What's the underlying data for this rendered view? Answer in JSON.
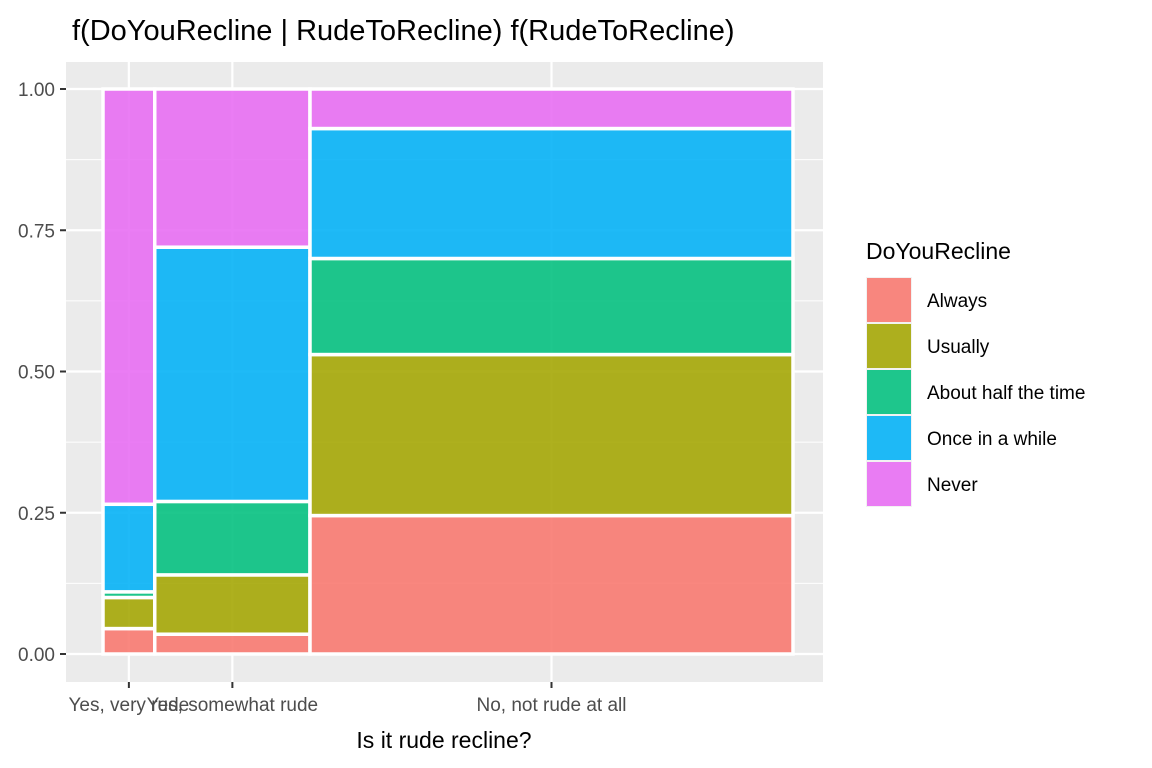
{
  "chart_data": {
    "type": "mosaic",
    "title": "f(DoYouRecline | RudeToRecline) f(RudeToRecline)",
    "xlabel": "Is it rude recline?",
    "ylabel": "",
    "ylim": [
      0,
      1
    ],
    "yticks": [
      "0.00",
      "0.25",
      "0.50",
      "0.75",
      "1.00"
    ],
    "grid": true,
    "legend": {
      "title": "DoYouRecline",
      "position": "right"
    },
    "series": [
      {
        "name": "Always",
        "color": "#F8766D"
      },
      {
        "name": "Usually",
        "color": "#A3A500"
      },
      {
        "name": "About half the time",
        "color": "#00BF7D"
      },
      {
        "name": "Once in a while",
        "color": "#00B0F6"
      },
      {
        "name": "Never",
        "color": "#E76BF3"
      }
    ],
    "categories": [
      {
        "label": "Yes, very rude",
        "width_fraction": 0.075,
        "proportions": [
          0.045,
          0.055,
          0.01,
          0.155,
          0.735
        ]
      },
      {
        "label": "Yes, somewhat rude",
        "width_fraction": 0.225,
        "proportions": [
          0.035,
          0.105,
          0.13,
          0.45,
          0.28
        ]
      },
      {
        "label": "No, not rude at all",
        "width_fraction": 0.7,
        "proportions": [
          0.245,
          0.285,
          0.17,
          0.23,
          0.07
        ]
      }
    ]
  }
}
